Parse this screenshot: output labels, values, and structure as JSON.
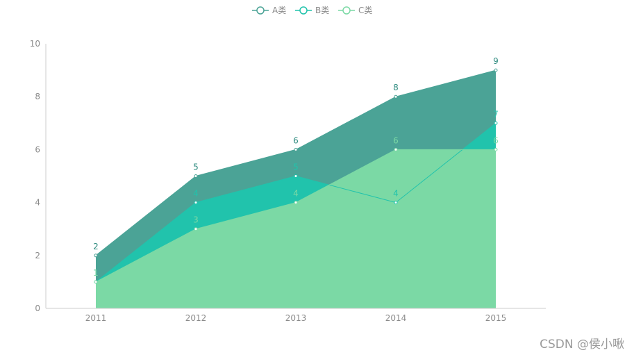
{
  "chart_data": {
    "type": "area",
    "categories": [
      "2011",
      "2012",
      "2013",
      "2014",
      "2015"
    ],
    "ylim": [
      0,
      10
    ],
    "yticks": [
      0,
      2,
      4,
      6,
      8,
      10
    ],
    "grid": false,
    "legend_position": "top-center",
    "series": [
      {
        "name": "A类",
        "values": [
          2,
          5,
          6,
          8,
          9
        ],
        "area_color": "#4ba396",
        "line_color": "#4ba396",
        "label_color": "#2e8b7f"
      },
      {
        "name": "B类",
        "values": [
          1,
          4,
          5,
          4,
          7
        ],
        "area_color": "#21c3ac",
        "line_color": "#21c3ac",
        "label_color": "#21c3ac"
      },
      {
        "name": "C类",
        "values": [
          1,
          3,
          4,
          6,
          6
        ],
        "area_color": "#7bd9a5",
        "line_color": "#7bd9a5",
        "label_color": "#7bd9a5"
      }
    ]
  },
  "watermark": "CSDN @侯小啾"
}
